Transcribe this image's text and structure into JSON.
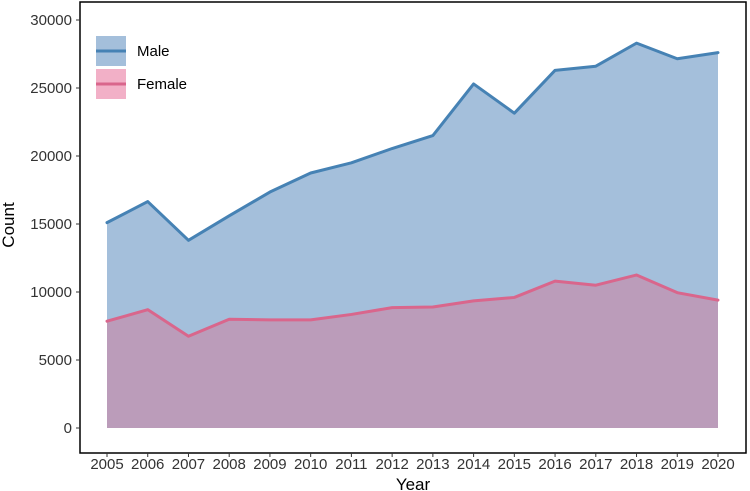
{
  "chart_data": {
    "type": "area",
    "title": "",
    "xlabel": "Year",
    "ylabel": "Count",
    "ylim": [
      0,
      30000
    ],
    "yticks": [
      0,
      5000,
      10000,
      15000,
      20000,
      25000,
      30000
    ],
    "ytick_labels": [
      "0",
      "5000",
      "10000",
      "15000",
      "20000",
      "25000",
      "30000"
    ],
    "x": [
      "2005",
      "2006",
      "2007",
      "2008",
      "2009",
      "2010",
      "2011",
      "2012",
      "2013",
      "2014",
      "2015",
      "2016",
      "2017",
      "2018",
      "2019",
      "2020"
    ],
    "grid": false,
    "legend_position": "top-left",
    "series": [
      {
        "name": "Male",
        "line_color": "#4682b4",
        "fill_color": "#a4bfdb",
        "values": [
          15100,
          16650,
          13800,
          15600,
          17350,
          18750,
          19500,
          20550,
          21500,
          25300,
          23150,
          26300,
          26600,
          28300,
          27150,
          27600
        ]
      },
      {
        "name": "Female",
        "line_color": "#d9668c",
        "fill_color": "#f2b0c7",
        "values": [
          7850,
          8700,
          6750,
          8000,
          7950,
          7950,
          8350,
          8850,
          8900,
          9350,
          9600,
          10800,
          10500,
          11250,
          9950,
          9400
        ]
      }
    ],
    "overlap_fill_color": "#bb9cba"
  }
}
